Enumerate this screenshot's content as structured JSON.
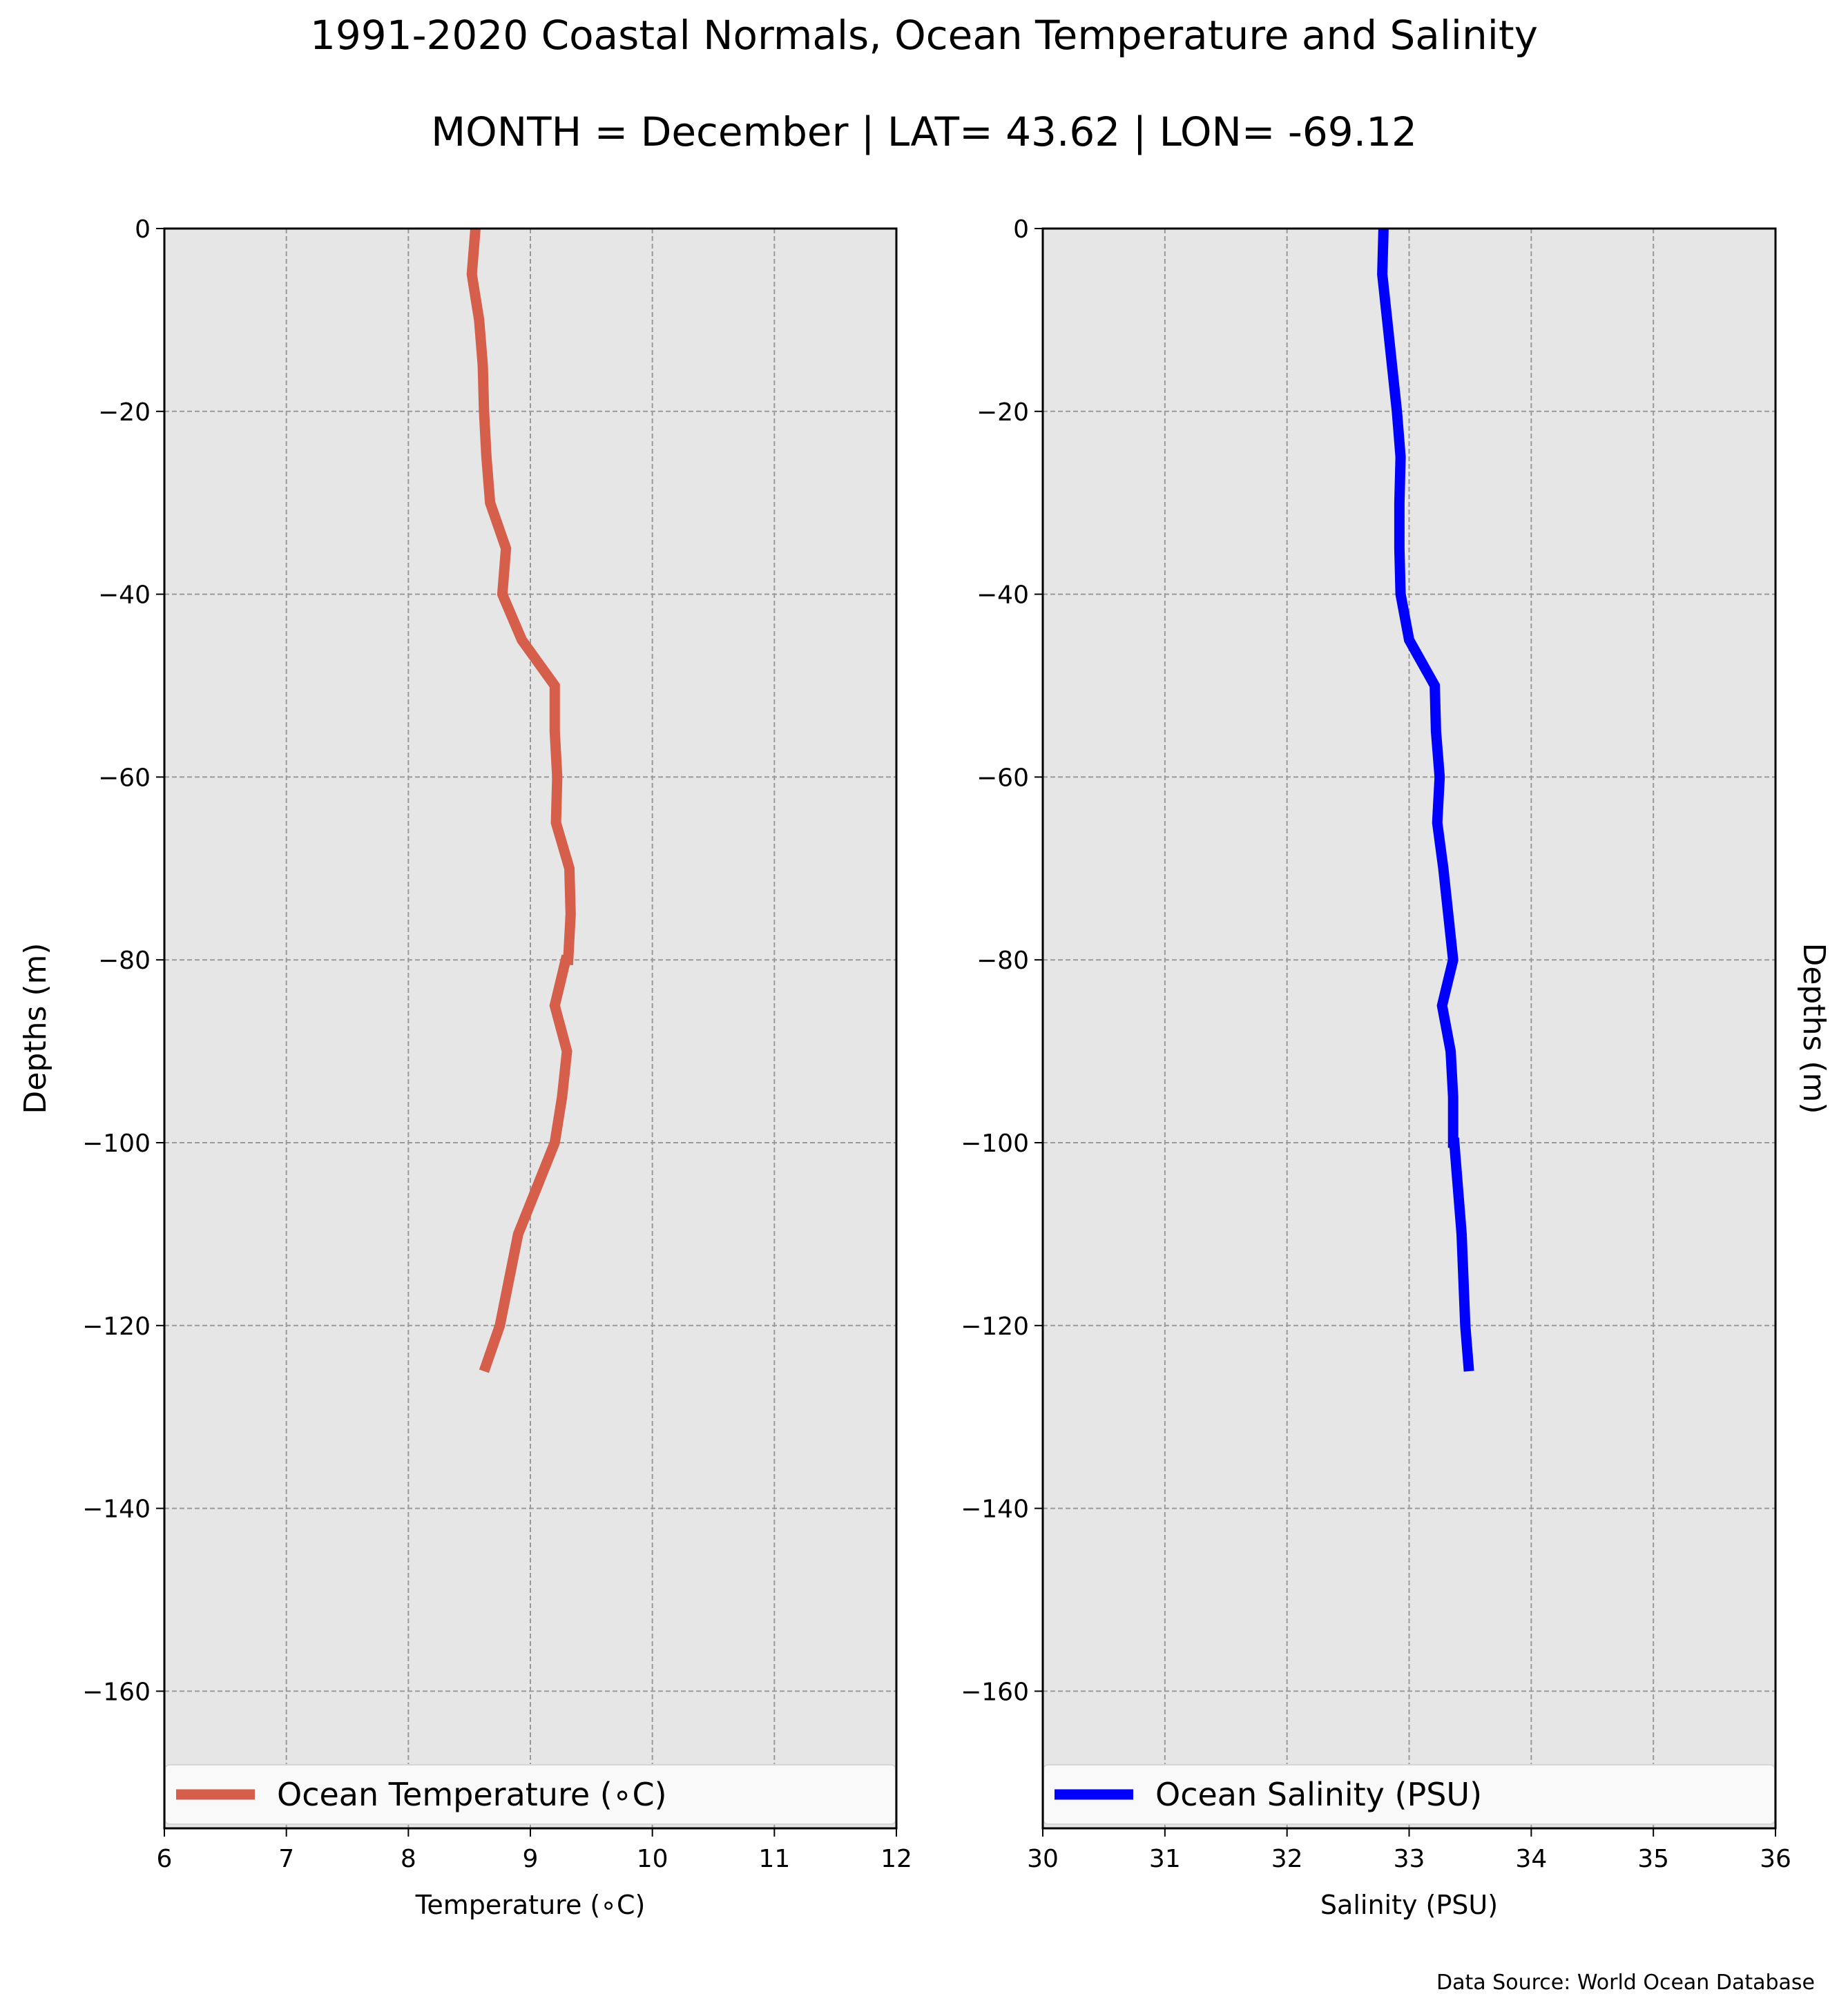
{
  "chart_data": [
    {
      "type": "line",
      "title": "1991-2020 Coastal Normals, Ocean Temperature and Salinity",
      "subtitle": "MONTH = December | LAT= 43.62 | LON= -69.12",
      "xlabel": "Temperature (∘C)",
      "ylabel": "Depths (m)",
      "xlim": [
        6,
        12
      ],
      "ylim": [
        -175,
        0
      ],
      "xticks": [
        6,
        7,
        8,
        9,
        10,
        11,
        12
      ],
      "yticks": [
        0,
        -20,
        -40,
        -60,
        -80,
        -100,
        -120,
        -140,
        -160
      ],
      "ytick_labels": [
        "0",
        "−20",
        "−40",
        "−60",
        "−80",
        "−100",
        "−120",
        "−140",
        "−160"
      ],
      "grid": true,
      "legend_position": "bottom",
      "series": [
        {
          "name": "Ocean Temperature (∘C)",
          "color": "#d65f4c",
          "x": [
            8.55,
            8.52,
            8.58,
            8.61,
            8.62,
            8.64,
            8.67,
            8.67,
            8.8,
            8.77,
            8.93,
            9.2,
            9.2,
            9.22,
            9.21,
            9.32,
            9.33,
            9.31,
            9.29,
            9.2,
            9.3,
            9.26,
            9.2,
            9.05,
            8.9,
            8.75,
            8.62
          ],
          "y": [
            0,
            -5,
            -10,
            -15,
            -20,
            -25,
            -30,
            -30,
            -35,
            -40,
            -45,
            -50,
            -55,
            -60,
            -65,
            -70,
            -75,
            -80,
            -80,
            -85,
            -90,
            -95,
            -100,
            -105,
            -110,
            -120,
            -125
          ]
        }
      ]
    },
    {
      "type": "line",
      "xlabel": "Salinity (PSU)",
      "ylabel": "Depths (m)",
      "xlim": [
        30,
        36
      ],
      "ylim": [
        -175,
        0
      ],
      "xticks": [
        30,
        31,
        32,
        33,
        34,
        35,
        36
      ],
      "yticks": [
        0,
        -20,
        -40,
        -60,
        -80,
        -100,
        -120,
        -140,
        -160
      ],
      "ytick_labels": [
        "0",
        "−20",
        "−40",
        "−60",
        "−80",
        "−100",
        "−120",
        "−140",
        "−160"
      ],
      "grid": true,
      "legend_position": "bottom",
      "series": [
        {
          "name": "Ocean Salinity (PSU)",
          "color": "#0000ff",
          "x": [
            32.79,
            32.78,
            32.82,
            32.86,
            32.9,
            32.93,
            32.92,
            32.92,
            32.93,
            32.93,
            33.0,
            33.21,
            33.22,
            33.25,
            33.23,
            33.28,
            33.32,
            33.36,
            33.27,
            33.34,
            33.36,
            33.36,
            33.37,
            33.4,
            33.43,
            33.46,
            33.49
          ],
          "y": [
            0,
            -5,
            -10,
            -15,
            -20,
            -25,
            -30,
            -35,
            -40,
            -40,
            -45,
            -50,
            -55,
            -60,
            -65,
            -70,
            -75,
            -80,
            -85,
            -90,
            -95,
            -100,
            -100,
            -105,
            -110,
            -120,
            -125
          ]
        }
      ]
    }
  ],
  "source_note": "Data Source: World Ocean Database",
  "style": {
    "panel_bg": "#e6e6e6",
    "grid_color": "#9a9a9a",
    "legend_bg": "#f9f9f9"
  }
}
